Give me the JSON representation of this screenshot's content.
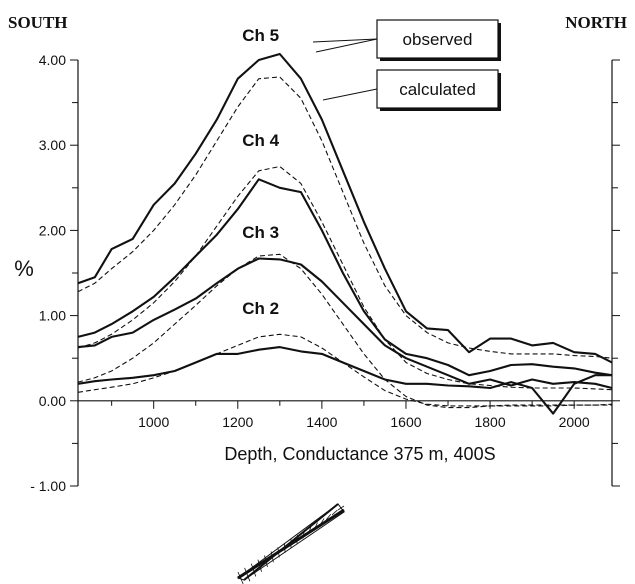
{
  "corner_labels": {
    "left": "SOUTH",
    "right": "NORTH"
  },
  "chart_data": {
    "type": "line",
    "xlabel": "Depth, Conductance 375 m, 400S",
    "ylabel": "%",
    "xlim": [
      820,
      2090
    ],
    "ylim": [
      -1.0,
      4.0
    ],
    "x_ticks": [
      1000,
      1200,
      1400,
      1600,
      1800,
      2000
    ],
    "y_ticks": [
      {
        "value": 4.0,
        "label": "4.00"
      },
      {
        "value": 3.0,
        "label": "3.00"
      },
      {
        "value": 2.0,
        "label": "2.00"
      },
      {
        "value": 1.0,
        "label": "1.00"
      },
      {
        "value": 0.0,
        "label": "0.00"
      },
      {
        "value": -1.0,
        "label": "- 1.00"
      }
    ],
    "legend": [
      {
        "label": "observed",
        "style": "solid"
      },
      {
        "label": "calculated",
        "style": "dashed"
      }
    ],
    "channel_labels": [
      {
        "label": "Ch 5",
        "x": 1290,
        "y": 4.15
      },
      {
        "label": "Ch 4",
        "x": 1290,
        "y": 2.92
      },
      {
        "label": "Ch 3",
        "x": 1290,
        "y": 1.84
      },
      {
        "label": "Ch 2",
        "x": 1290,
        "y": 0.95
      }
    ],
    "series": [
      {
        "type": "observed",
        "style": "solid",
        "x": [
          820,
          860,
          900,
          950,
          1000,
          1050,
          1100,
          1150,
          1200,
          1250,
          1300,
          1350,
          1400,
          1450,
          1500,
          1550,
          1600,
          1650,
          1700,
          1750,
          1800,
          1850,
          1900,
          1950,
          2000,
          2050,
          2090
        ],
        "y": [
          1.38,
          1.45,
          1.78,
          1.9,
          2.3,
          2.55,
          2.9,
          3.3,
          3.78,
          4.0,
          4.07,
          3.78,
          3.3,
          2.7,
          2.1,
          1.55,
          1.05,
          0.85,
          0.83,
          0.57,
          0.73,
          0.73,
          0.65,
          0.68,
          0.57,
          0.55,
          0.45
        ]
      },
      {
        "type": "calculated",
        "style": "dashed",
        "x": [
          820,
          860,
          900,
          950,
          1000,
          1050,
          1100,
          1150,
          1200,
          1250,
          1300,
          1350,
          1400,
          1450,
          1500,
          1550,
          1600,
          1650,
          1700,
          1750,
          1800,
          1850,
          1900,
          1950,
          2000,
          2050,
          2090
        ],
        "y": [
          1.28,
          1.38,
          1.55,
          1.75,
          2.0,
          2.3,
          2.65,
          3.05,
          3.45,
          3.78,
          3.8,
          3.55,
          3.05,
          2.45,
          1.85,
          1.35,
          1.0,
          0.8,
          0.68,
          0.62,
          0.58,
          0.55,
          0.55,
          0.55,
          0.53,
          0.52,
          0.5
        ]
      },
      {
        "type": "observed",
        "style": "solid",
        "x": [
          820,
          860,
          900,
          950,
          1000,
          1050,
          1100,
          1150,
          1200,
          1250,
          1300,
          1350,
          1400,
          1450,
          1500,
          1550,
          1600,
          1650,
          1700,
          1750,
          1800,
          1850,
          1900,
          1950,
          2000,
          2050,
          2090
        ],
        "y": [
          0.75,
          0.8,
          0.9,
          1.05,
          1.22,
          1.45,
          1.7,
          1.95,
          2.25,
          2.6,
          2.5,
          2.45,
          2.0,
          1.5,
          1.05,
          0.72,
          0.55,
          0.5,
          0.42,
          0.3,
          0.35,
          0.42,
          0.43,
          0.4,
          0.38,
          0.33,
          0.3
        ]
      },
      {
        "type": "calculated",
        "style": "dashed",
        "x": [
          820,
          860,
          900,
          950,
          1000,
          1050,
          1100,
          1150,
          1200,
          1250,
          1300,
          1350,
          1400,
          1450,
          1500,
          1550,
          1600,
          1650,
          1700,
          1750,
          1800,
          1850,
          1900,
          1950,
          2000,
          2050,
          2090
        ],
        "y": [
          0.62,
          0.68,
          0.78,
          0.95,
          1.15,
          1.4,
          1.7,
          2.05,
          2.4,
          2.7,
          2.75,
          2.55,
          2.1,
          1.6,
          1.1,
          0.72,
          0.45,
          0.32,
          0.25,
          0.2,
          0.18,
          0.16,
          0.15,
          0.15,
          0.15,
          0.14,
          0.13
        ]
      },
      {
        "type": "observed",
        "style": "solid",
        "x": [
          820,
          860,
          900,
          950,
          1000,
          1050,
          1100,
          1150,
          1200,
          1250,
          1300,
          1350,
          1400,
          1450,
          1500,
          1550,
          1600,
          1650,
          1700,
          1750,
          1800,
          1850,
          1900,
          1950,
          2000,
          2050,
          2090
        ],
        "y": [
          0.63,
          0.65,
          0.75,
          0.8,
          0.95,
          1.07,
          1.2,
          1.38,
          1.55,
          1.67,
          1.66,
          1.6,
          1.4,
          1.15,
          0.9,
          0.65,
          0.5,
          0.4,
          0.3,
          0.2,
          0.25,
          0.18,
          0.25,
          0.2,
          0.22,
          0.2,
          0.15
        ]
      },
      {
        "type": "calculated",
        "style": "dashed",
        "x": [
          820,
          860,
          900,
          950,
          1000,
          1050,
          1100,
          1150,
          1200,
          1250,
          1300,
          1350,
          1400,
          1450,
          1500,
          1550,
          1600,
          1650,
          1700,
          1750,
          1800,
          1850,
          1900,
          1950,
          2000,
          2050,
          2090
        ],
        "y": [
          0.22,
          0.27,
          0.35,
          0.5,
          0.68,
          0.9,
          1.12,
          1.35,
          1.55,
          1.7,
          1.72,
          1.55,
          1.25,
          0.9,
          0.55,
          0.25,
          0.05,
          -0.05,
          -0.08,
          -0.08,
          -0.06,
          -0.05,
          -0.05,
          -0.05,
          -0.05,
          -0.05,
          -0.04
        ]
      },
      {
        "type": "observed",
        "style": "solid",
        "x": [
          820,
          860,
          900,
          950,
          1000,
          1050,
          1100,
          1150,
          1200,
          1250,
          1300,
          1350,
          1400,
          1450,
          1500,
          1550,
          1600,
          1650,
          1700,
          1750,
          1800,
          1850,
          1900,
          1950,
          2000,
          2050,
          2090
        ],
        "y": [
          0.2,
          0.23,
          0.25,
          0.27,
          0.3,
          0.35,
          0.45,
          0.55,
          0.55,
          0.6,
          0.63,
          0.58,
          0.55,
          0.45,
          0.35,
          0.25,
          0.2,
          0.2,
          0.18,
          0.17,
          0.15,
          0.22,
          0.15,
          -0.15,
          0.2,
          0.3,
          0.3
        ]
      },
      {
        "type": "calculated",
        "style": "dashed",
        "x": [
          820,
          860,
          900,
          950,
          1000,
          1050,
          1100,
          1150,
          1200,
          1250,
          1300,
          1350,
          1400,
          1450,
          1500,
          1550,
          1600,
          1650,
          1700,
          1750,
          1800,
          1850,
          1900,
          1950,
          2000,
          2050,
          2090
        ],
        "y": [
          0.1,
          0.13,
          0.16,
          0.2,
          0.27,
          0.35,
          0.45,
          0.55,
          0.65,
          0.75,
          0.78,
          0.75,
          0.62,
          0.45,
          0.28,
          0.12,
          0.02,
          -0.04,
          -0.06,
          -0.06,
          -0.06,
          -0.06,
          -0.06,
          -0.06,
          -0.05,
          -0.05,
          -0.05
        ]
      }
    ]
  }
}
